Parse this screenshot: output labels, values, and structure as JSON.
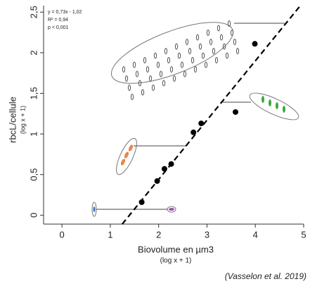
{
  "chart_data": {
    "type": "scatter",
    "x": [
      1.65,
      1.97,
      2.12,
      2.26,
      2.72,
      2.88,
      3.59,
      3.99
    ],
    "y": [
      0.16,
      0.42,
      0.57,
      0.63,
      1.02,
      1.13,
      1.27,
      2.11
    ],
    "color": "#000000",
    "xlim": [
      -0.38,
      5.0
    ],
    "ylim": [
      -0.11,
      2.58
    ],
    "xticks": [
      0,
      1,
      2,
      3,
      4,
      5
    ],
    "yticks": [
      0,
      {
        "value": 0.5,
        "label": "0,5"
      },
      1,
      {
        "value": 1.5,
        "label": "1,5"
      },
      2,
      {
        "value": 2.5,
        "label": "2,5"
      }
    ],
    "xlabel": "Biovolume en µm3",
    "xlabel_sub": "(log x + 1)",
    "ylabel": "rbcL/cellule",
    "ylabel_sub": "(log x + 1)",
    "regression": {
      "slope": 0.73,
      "intercept": -1.02,
      "label": "y = 0,73x - 1,02"
    },
    "annotations": [
      "R² = 0,94",
      "p < 0,001"
    ],
    "source": "(Vasselon et al. 2019)"
  }
}
